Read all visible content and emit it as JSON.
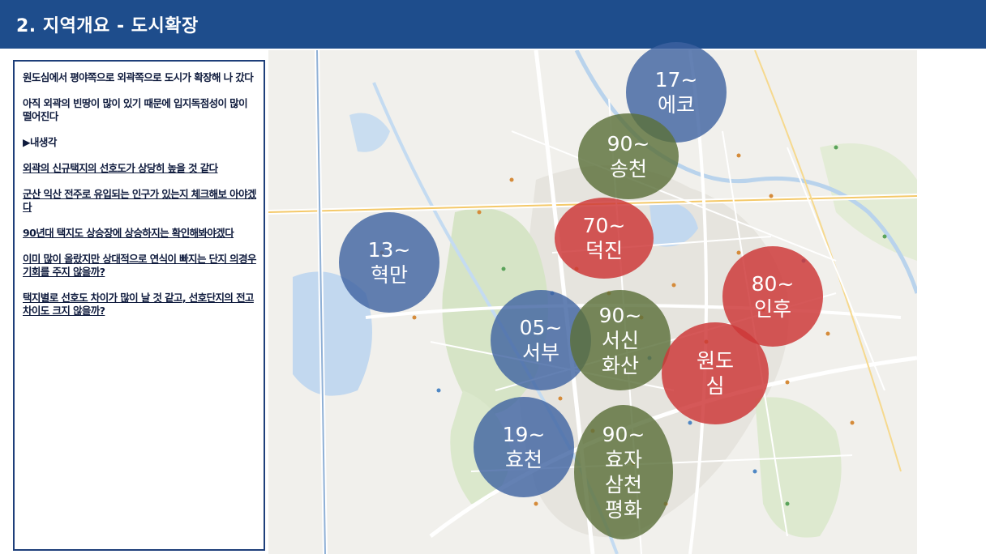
{
  "header": {
    "title": "2. 지역개요 - 도시확장"
  },
  "notes": [
    {
      "text": "원도심에서 평야쪽으로 외곽쪽으로 도시가 확장해 나 갔다",
      "underline": false
    },
    {
      "text": "아직 외곽의 빈땅이 많이 있기 때문에 입지독점성이 많이 떨어진다",
      "underline": false
    },
    {
      "text": "▶내생각",
      "underline": false
    },
    {
      "text": "외곽의 신규택지의 선호도가 상당히 높을 것 같다",
      "underline": true
    },
    {
      "text": "군산 익산 전주로 유입되는 인구가 있는지 체크해보 아야겠다",
      "underline": true
    },
    {
      "text": "90년대 택지도 상승장에 상승하지는 확인해봐야겠다",
      "underline": true
    },
    {
      "text": "이미 많이 올랐지만 상대적으로 연식이 빠지는 단지 의경우 기회를 주지 않을까?",
      "underline": true
    },
    {
      "text": "택지별로 선호도 차이가 많이 날 것 같고, 선호단지의 전고차이도 크지 않을까?",
      "underline": true
    }
  ],
  "zones": {
    "eco": {
      "line1": "17~",
      "line2": "에코",
      "color": "#3d62a0"
    },
    "songcheon": {
      "line1": "90~",
      "line2": "송천",
      "color": "#5c703a"
    },
    "deokjin": {
      "line1": "70~",
      "line2": "덕진",
      "color": "#cd3838"
    },
    "hyeokman": {
      "line1": "13~",
      "line2": "혁만",
      "color": "#3d62a0"
    },
    "inhu": {
      "line1": "80~",
      "line2": "인후",
      "color": "#cd3838"
    },
    "seobu": {
      "line1": "05~",
      "line2": "서부",
      "color": "#3d62a0"
    },
    "seosin": {
      "line1": "90~",
      "line2": "서신",
      "line3": "화산",
      "color": "#5c703a"
    },
    "wondosim": {
      "line1": "원도",
      "line2": "심",
      "color": "#cd3838"
    },
    "hyocheon": {
      "line1": "19~",
      "line2": "효천",
      "color": "#3d62a0"
    },
    "hyoja": {
      "line1": "90~",
      "line2": "효자",
      "line3": "삼천",
      "line4": "평화",
      "color": "#5c703a"
    }
  }
}
